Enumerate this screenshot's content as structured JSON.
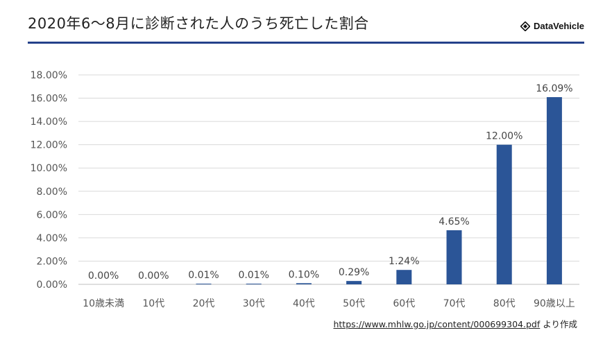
{
  "header": {
    "title": "2020年6～8月に診断された人のうち死亡した割合",
    "brand": "DataVehicle",
    "brand_icon": "diamond-logo-icon"
  },
  "source": {
    "url": "https://www.mhlw.go.jp/content/000699304.pdf",
    "suffix": "より作成"
  },
  "colors": {
    "bar": "#2b5597",
    "accent_rule": "#24418a",
    "grid": "#d9d9d9"
  },
  "chart_data": {
    "type": "bar",
    "title": "",
    "xlabel": "",
    "ylabel": "",
    "categories": [
      "10歳未満",
      "10代",
      "20代",
      "30代",
      "40代",
      "50代",
      "60代",
      "70代",
      "80代",
      "90歳以上"
    ],
    "values": [
      0.0,
      0.0,
      0.01,
      0.01,
      0.1,
      0.29,
      1.24,
      4.65,
      12.0,
      16.09
    ],
    "data_labels": [
      "0.00%",
      "0.00%",
      "0.01%",
      "0.01%",
      "0.10%",
      "0.29%",
      "1.24%",
      "4.65%",
      "12.00%",
      "16.09%"
    ],
    "ylim": [
      0,
      18
    ],
    "yticks": [
      0,
      2,
      4,
      6,
      8,
      10,
      12,
      14,
      16,
      18
    ],
    "ytick_labels": [
      "0.00%",
      "2.00%",
      "4.00%",
      "6.00%",
      "8.00%",
      "10.00%",
      "12.00%",
      "14.00%",
      "16.00%",
      "18.00%"
    ],
    "grid": true,
    "legend": "none"
  }
}
